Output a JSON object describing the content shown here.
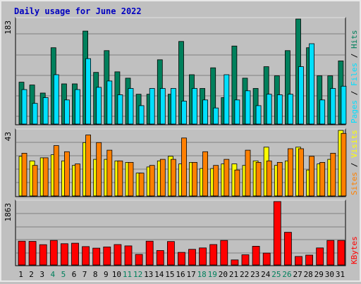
{
  "title": "Daily usage for June 2022",
  "colors": {
    "background": "#C0C0C0",
    "title": "#0000C0",
    "hits": "#00805C",
    "files": "#00E0FF",
    "pages": "#00E0FF",
    "visits": "#FFFF00",
    "sites": "#FF8000",
    "kbytes": "#FF0000",
    "weekend_day": "#00805C",
    "weekday": "#000000"
  },
  "chart_data": [
    {
      "type": "bar",
      "panel": "hits-files-pages",
      "title": "Daily usage for June 2022",
      "ymax_label": "183",
      "ylim": [
        0,
        183
      ],
      "legend_right": [
        "Pages",
        "/",
        "Files",
        "/",
        "Hits"
      ],
      "series": [
        {
          "name": "Hits",
          "values": [
            73,
            68,
            54,
            133,
            70,
            70,
            162,
            90,
            128,
            91,
            80,
            52,
            52,
            112,
            52,
            144,
            86,
            62,
            98,
            46,
            136,
            80,
            62,
            100,
            84,
            128,
            183,
            133,
            84,
            84,
            110
          ]
        },
        {
          "name": "Files",
          "values": [
            60,
            36,
            46,
            86,
            42,
            60,
            114,
            64,
            75,
            51,
            62,
            32,
            62,
            62,
            62,
            40,
            62,
            42,
            28,
            86,
            42,
            58,
            32,
            52,
            51,
            52,
            100,
            140,
            42,
            62,
            66
          ]
        },
        {
          "name": "Pages",
          "values": [
            0,
            0,
            0,
            0,
            0,
            0,
            0,
            0,
            0,
            0,
            0,
            0,
            0,
            0,
            0,
            0,
            0,
            0,
            0,
            0,
            0,
            0,
            0,
            0,
            0,
            0,
            0,
            0,
            0,
            0,
            0
          ]
        }
      ]
    },
    {
      "type": "bar",
      "panel": "visits-sites",
      "ymax_label": "43",
      "ylim": [
        0,
        43
      ],
      "legend_right": [
        "Sites",
        "/",
        "Visits"
      ],
      "series": [
        {
          "name": "Visits",
          "values": [
            26,
            23,
            25,
            27,
            23,
            20,
            35,
            24,
            24,
            23,
            22,
            15,
            19,
            23,
            26,
            21,
            22,
            18,
            18,
            21,
            21,
            20,
            23,
            32,
            20,
            23,
            32,
            17,
            21,
            24,
            43
          ]
        },
        {
          "name": "Sites",
          "values": [
            28,
            20,
            25,
            33,
            29,
            21,
            40,
            35,
            30,
            23,
            22,
            15,
            20,
            24,
            24,
            38,
            22,
            29,
            20,
            24,
            17,
            30,
            22,
            23,
            22,
            31,
            31,
            26,
            22,
            28,
            41
          ]
        }
      ]
    },
    {
      "type": "bar",
      "panel": "kbytes",
      "ymax_label": "1863",
      "ylim": [
        0,
        1863
      ],
      "legend_right": [
        "KBytes"
      ],
      "series": [
        {
          "name": "KBytes",
          "values": [
            700,
            694,
            596,
            720,
            625,
            640,
            540,
            495,
            530,
            600,
            560,
            310,
            700,
            425,
            690,
            370,
            460,
            500,
            600,
            720,
            150,
            300,
            550,
            350,
            1863,
            960,
            250,
            290,
            500,
            720,
            720
          ]
        }
      ]
    }
  ],
  "days": [
    "1",
    "2",
    "3",
    "4",
    "5",
    "6",
    "7",
    "8",
    "9",
    "10",
    "11",
    "12",
    "13",
    "14",
    "15",
    "16",
    "17",
    "18",
    "19",
    "20",
    "21",
    "22",
    "23",
    "24",
    "25",
    "26",
    "27",
    "28",
    "29",
    "30",
    "31"
  ],
  "weekend_days": [
    4,
    5,
    11,
    12,
    18,
    19,
    25,
    26
  ]
}
